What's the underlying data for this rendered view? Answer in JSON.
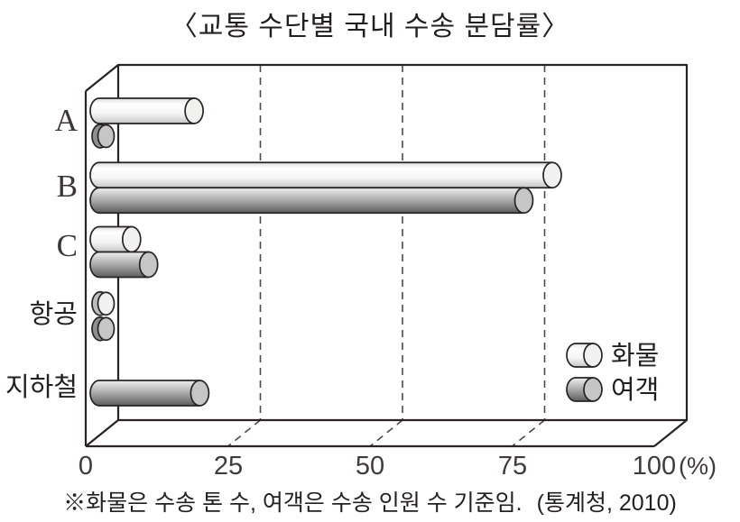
{
  "title": "〈교통 수단별 국내 수송 분담률〉",
  "footnote": {
    "note": "※화물은 수송 톤 수, 여객은 수송 인원 수 기준임.",
    "source": "(통계청, 2010)"
  },
  "chart_data": {
    "type": "bar",
    "orientation": "horizontal",
    "title": "교통 수단별 국내 수송 분담률",
    "unit": "%",
    "categories": [
      "A",
      "B",
      "C",
      "항공",
      "지하철"
    ],
    "series": [
      {
        "name": "화물",
        "values": [
          17,
          80,
          6,
          1,
          null
        ]
      },
      {
        "name": "여객",
        "values": [
          1,
          75,
          9,
          1,
          18
        ]
      }
    ],
    "axis": {
      "ticks": [
        0,
        25,
        50,
        75,
        100
      ],
      "unit_label": "(%)",
      "min": 0,
      "max": 100,
      "grid": "dashed-vertical"
    },
    "legend_position": "inside-bottom-right",
    "style": "3d-cylinder-bars"
  },
  "colors": {
    "outline": "#292325",
    "grid": "#4a4a4a",
    "text": "#231f20",
    "freight_bar": {
      "edge": "#dcdcdc",
      "highlight": "#ffffff",
      "mid": "#f4f4f4",
      "shade": "#c6c6c6",
      "cap": "#f1f1f0",
      "cap_shade": "#bdbdbd"
    },
    "passenger_bar": {
      "edge": "#f0f0f0",
      "mid": "#a9a9a9",
      "shade": "#5d5d5d",
      "cap": "#c6c6c6",
      "cap_shade": "#8f8f8f"
    }
  }
}
